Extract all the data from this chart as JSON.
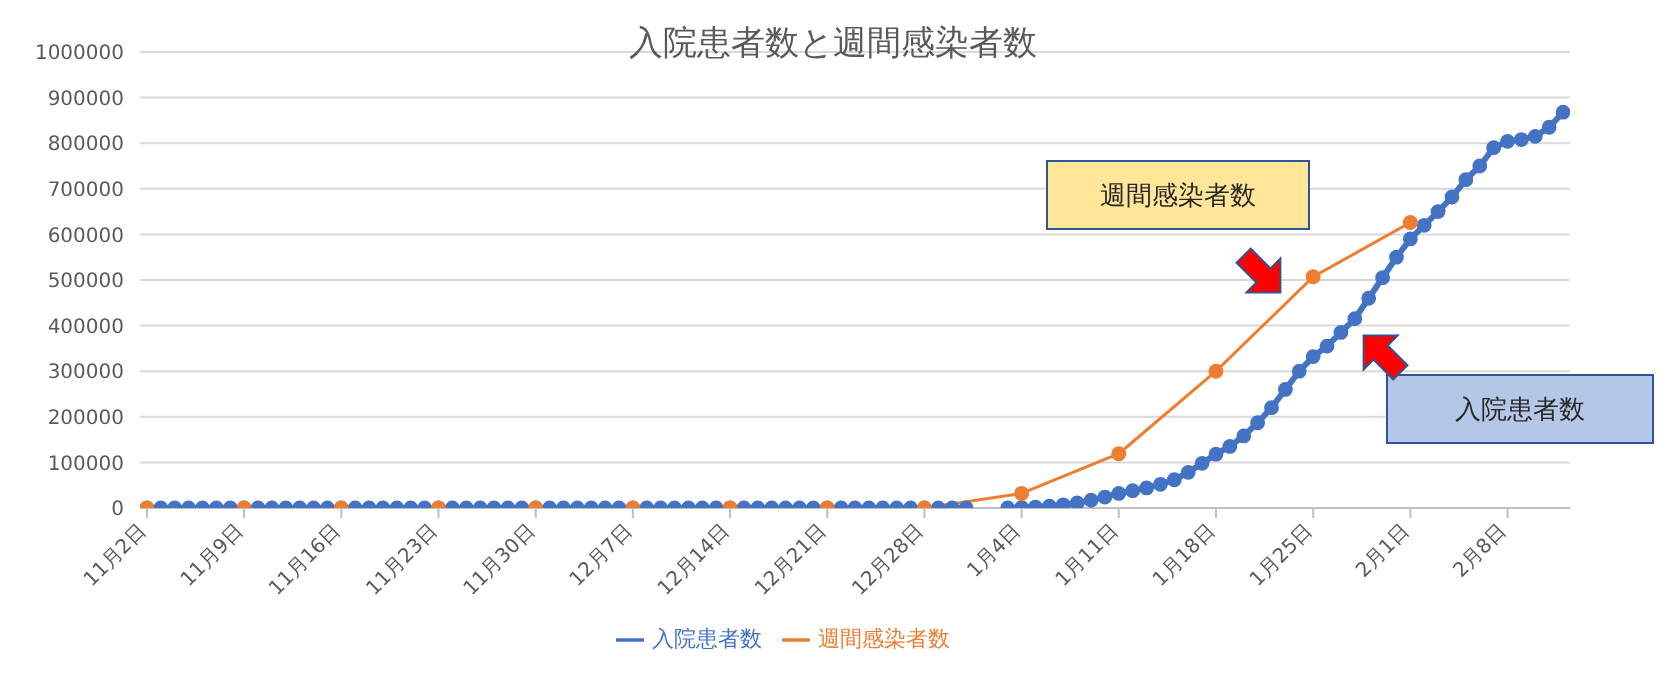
{
  "chart_data": {
    "type": "line",
    "title": "入院患者数と週間感染者数",
    "categories": [
      "11月2日",
      null,
      null,
      null,
      null,
      null,
      null,
      "11月9日",
      null,
      null,
      null,
      null,
      null,
      null,
      "11月16日",
      null,
      null,
      null,
      null,
      null,
      null,
      "11月23日",
      null,
      null,
      null,
      null,
      null,
      null,
      "11月30日",
      null,
      null,
      null,
      null,
      null,
      null,
      "12月7日",
      null,
      null,
      null,
      null,
      null,
      null,
      "12月14日",
      null,
      null,
      null,
      null,
      null,
      null,
      "12月21日",
      null,
      null,
      null,
      null,
      null,
      null,
      "12月28日",
      null,
      null,
      null,
      null,
      null,
      null,
      "1月4日",
      null,
      null,
      null,
      null,
      null,
      null,
      "1月11日",
      null,
      null,
      null,
      null,
      null,
      null,
      "1月18日",
      null,
      null,
      null,
      null,
      null,
      null,
      "1月25日",
      null,
      null,
      null,
      null,
      null,
      null,
      "2月1日",
      null,
      null,
      null,
      null,
      null,
      null,
      "2月8日",
      null,
      null,
      null,
      null
    ],
    "ylim": [
      0,
      1000000
    ],
    "yticks": [
      0,
      100000,
      200000,
      300000,
      400000,
      500000,
      600000,
      700000,
      800000,
      900000,
      1000000
    ],
    "grid": "y",
    "legend": "bottom",
    "marker": "circle",
    "line_style": "solid",
    "annotations": [
      "週間感染者数",
      "入院患者数"
    ],
    "series": [
      {
        "name": "入院患者数",
        "color": "#4472c4",
        "values": [
          0,
          0,
          0,
          0,
          0,
          0,
          0,
          0,
          0,
          0,
          0,
          0,
          0,
          0,
          0,
          0,
          0,
          0,
          0,
          0,
          0,
          0,
          0,
          0,
          0,
          0,
          0,
          0,
          0,
          0,
          0,
          0,
          0,
          0,
          0,
          0,
          0,
          0,
          0,
          0,
          0,
          0,
          0,
          0,
          0,
          0,
          0,
          0,
          0,
          0,
          0,
          0,
          0,
          0,
          0,
          0,
          0,
          0,
          0,
          0,
          null,
          null,
          0,
          1000,
          2000,
          4000,
          7000,
          11000,
          17000,
          24000,
          32000,
          38000,
          44000,
          52000,
          62000,
          78000,
          98000,
          118000,
          135000,
          158000,
          187000,
          220000,
          260000,
          300000,
          332000,
          355000,
          385000,
          415000,
          460000,
          505000,
          550000,
          590000,
          620000,
          650000,
          682000,
          720000,
          750000,
          790000,
          804000,
          808000,
          815000,
          835000,
          868000
        ]
      },
      {
        "name": "週間感染者数",
        "color": "#ed7d31",
        "x": [
          "11月2日",
          "11月9日",
          "11月16日",
          "11月23日",
          "11月30日",
          "12月7日",
          "12月14日",
          "12月21日",
          "12月28日",
          "1月4日",
          "1月11日",
          "1月18日",
          "1月25日",
          "2月1日"
        ],
        "values": [
          0,
          0,
          0,
          0,
          0,
          0,
          0,
          0,
          0,
          32000,
          119000,
          300000,
          507000,
          626000
        ]
      }
    ]
  }
}
